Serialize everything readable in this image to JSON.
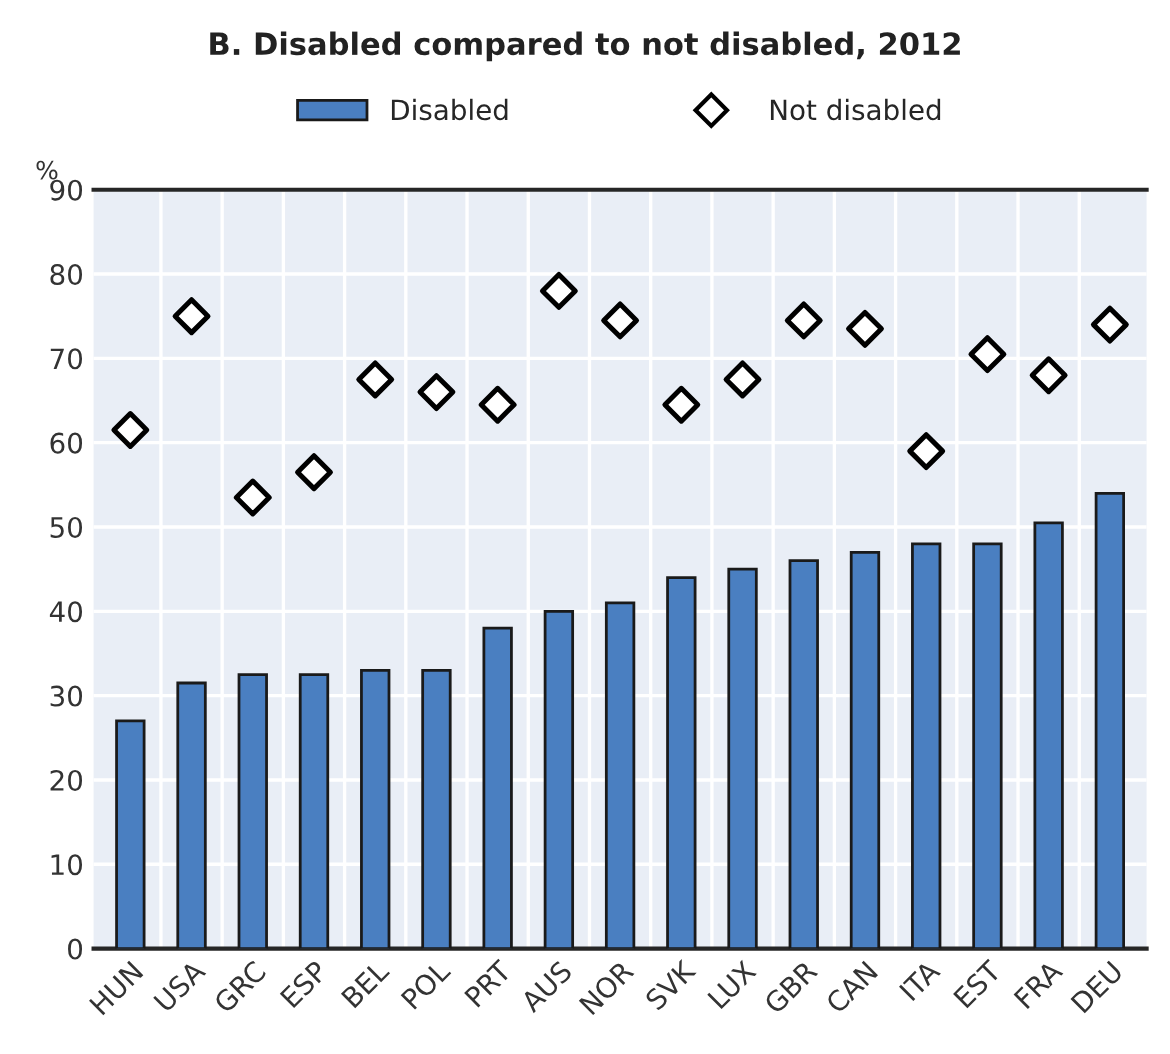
{
  "chart_data": {
    "type": "bar",
    "title": "B. Disabled compared to not disabled, 2012",
    "ylabel": "%",
    "categories": [
      "HUN",
      "USA",
      "GRC",
      "ESP",
      "BEL",
      "POL",
      "PRT",
      "AUS",
      "NOR",
      "SVK",
      "LUX",
      "GBR",
      "CAN",
      "ITA",
      "EST",
      "FRA",
      "DEU"
    ],
    "series": [
      {
        "name": "Disabled",
        "color": "#4a7fc1",
        "values": [
          27,
          31.5,
          32.5,
          32.5,
          33,
          33,
          38,
          40,
          41,
          44,
          45,
          46,
          47,
          48,
          48,
          50.5,
          54
        ]
      },
      {
        "name": "Not disabled",
        "type": "scatter",
        "marker": "diamond",
        "color": "#000000",
        "values": [
          61.5,
          75,
          53.5,
          56.5,
          67.5,
          66,
          64.5,
          78,
          74.5,
          64.5,
          67.5,
          74.5,
          73.5,
          59,
          70.5,
          68,
          74
        ]
      }
    ],
    "ylim": [
      0,
      90
    ],
    "yticks": [
      0,
      10,
      20,
      30,
      40,
      50,
      60,
      70,
      80,
      90
    ],
    "grid": true,
    "legend": "top"
  }
}
